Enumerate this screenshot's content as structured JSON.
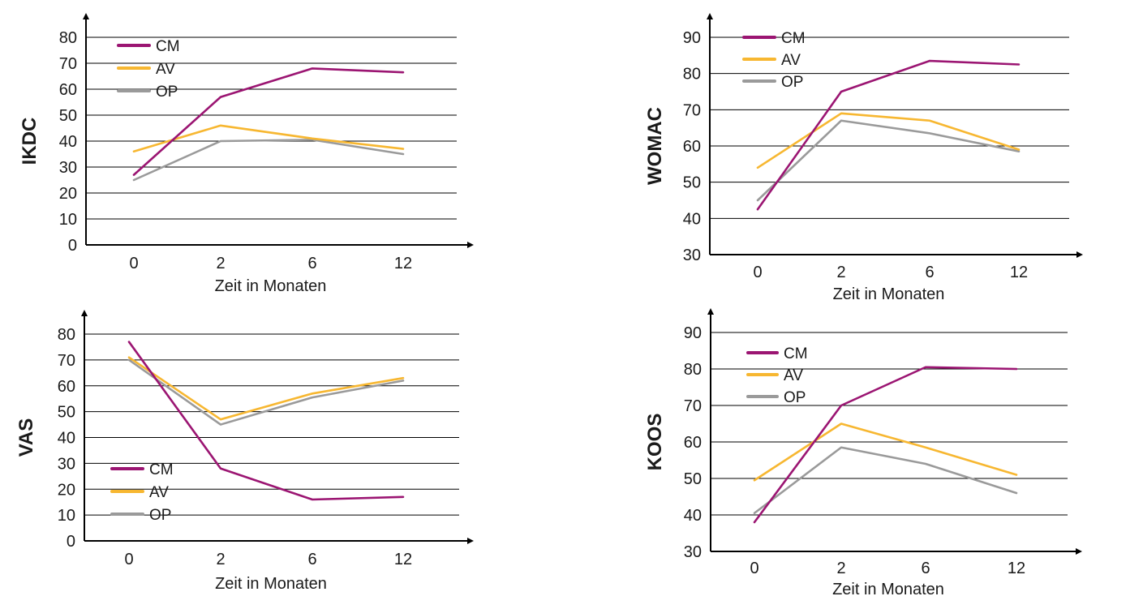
{
  "colors": {
    "CM": "#9b1572",
    "AV": "#f7b731",
    "OP": "#9a9a9a",
    "axis": "#000000",
    "grid": "#000000"
  },
  "chart_data": [
    {
      "type": "line",
      "id": "ikdc",
      "ylabel": "IKDC",
      "xlabel": "Zeit in Monaten",
      "categories": [
        "0",
        "2",
        "6",
        "12"
      ],
      "ylim": [
        0,
        80
      ],
      "yticks": [
        0,
        10,
        20,
        30,
        40,
        50,
        60,
        70,
        80
      ],
      "legend_position": "top-left",
      "series": [
        {
          "name": "CM",
          "values": [
            27,
            57,
            68,
            66.5
          ]
        },
        {
          "name": "AV",
          "values": [
            36,
            46,
            41,
            37
          ]
        },
        {
          "name": "OP",
          "values": [
            25,
            40,
            40.5,
            35
          ]
        }
      ]
    },
    {
      "type": "line",
      "id": "womac",
      "ylabel": "WOMAC",
      "xlabel": "Zeit in Monaten",
      "categories": [
        "0",
        "2",
        "6",
        "12"
      ],
      "ylim": [
        30,
        90
      ],
      "yticks": [
        30,
        40,
        50,
        60,
        70,
        80,
        90
      ],
      "legend_position": "top-left",
      "series": [
        {
          "name": "CM",
          "values": [
            42.5,
            75,
            83.5,
            82.5
          ]
        },
        {
          "name": "AV",
          "values": [
            54,
            69,
            67,
            59
          ]
        },
        {
          "name": "OP",
          "values": [
            45,
            67,
            63.5,
            58.5
          ]
        }
      ]
    },
    {
      "type": "line",
      "id": "vas",
      "ylabel": "VAS",
      "xlabel": "Zeit in Monaten",
      "categories": [
        "0",
        "2",
        "6",
        "12"
      ],
      "ylim": [
        0,
        80
      ],
      "yticks": [
        0,
        10,
        20,
        30,
        40,
        50,
        60,
        70,
        80
      ],
      "legend_position": "bottom-left",
      "series": [
        {
          "name": "CM",
          "values": [
            77,
            28,
            16,
            17
          ]
        },
        {
          "name": "AV",
          "values": [
            71,
            47,
            57,
            63
          ]
        },
        {
          "name": "OP",
          "values": [
            70,
            45,
            55.5,
            62
          ]
        }
      ]
    },
    {
      "type": "line",
      "id": "koos",
      "ylabel": "KOOS",
      "xlabel": "Zeit in Monaten",
      "categories": [
        "0",
        "2",
        "6",
        "12"
      ],
      "ylim": [
        30,
        90
      ],
      "yticks": [
        30,
        40,
        50,
        60,
        70,
        80,
        90
      ],
      "legend_position": "top-left",
      "series": [
        {
          "name": "CM",
          "values": [
            38,
            70,
            80.5,
            80
          ]
        },
        {
          "name": "AV",
          "values": [
            49.5,
            65,
            58.5,
            51
          ]
        },
        {
          "name": "OP",
          "values": [
            40.5,
            58.5,
            54,
            46
          ]
        }
      ]
    }
  ]
}
